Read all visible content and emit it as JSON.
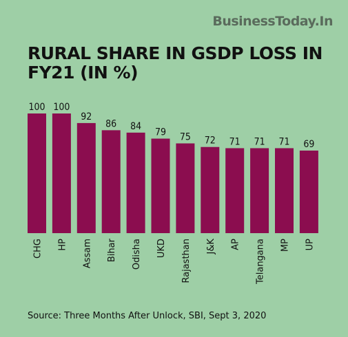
{
  "brand": "BusinessToday.In",
  "colors": {
    "background": "#9ecfa6",
    "bar": "#8b0d4f",
    "text": "#111111"
  },
  "chart_data": {
    "type": "bar",
    "title": "RURAL SHARE IN GSDP LOSS IN FY21 (IN %)",
    "categories": [
      "CHG",
      "HP",
      "Assam",
      "Bihar",
      "Odisha",
      "UKD",
      "Rajasthan",
      "J&K",
      "AP",
      "Telangana",
      "MP",
      "UP"
    ],
    "values": [
      100,
      100,
      92,
      86,
      84,
      79,
      75,
      72,
      71,
      71,
      71,
      69
    ],
    "xlabel": "",
    "ylabel": "",
    "ylim": [
      0,
      100
    ],
    "grid": false,
    "legend": "none"
  },
  "source": "Source: Three Months After Unlock, SBI, Sept 3, 2020"
}
